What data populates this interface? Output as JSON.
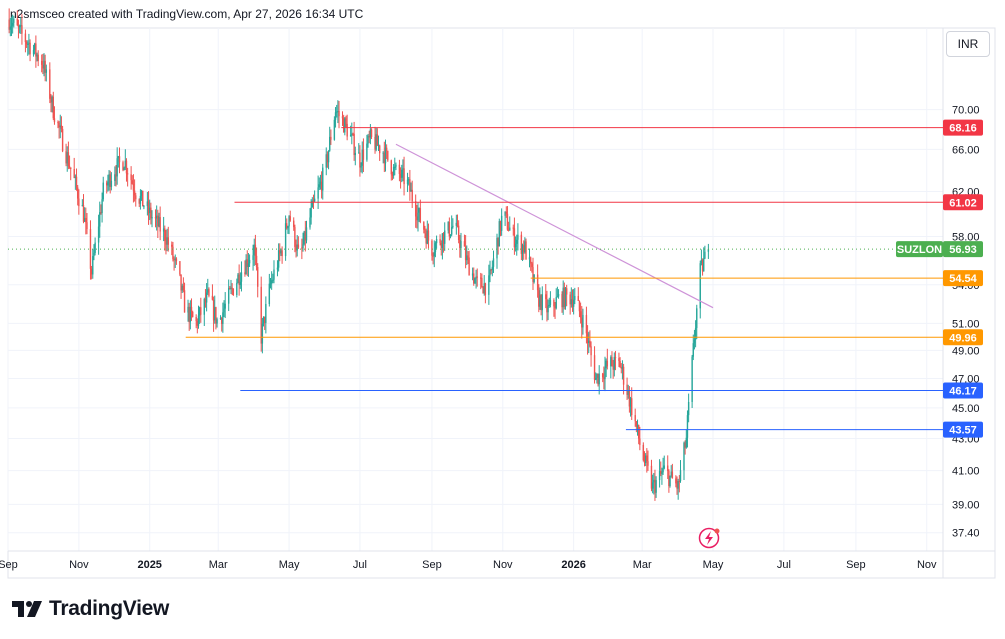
{
  "header": {
    "attribution": "n2smsceo created with TradingView.com, Apr 27, 2026 16:34 UTC"
  },
  "toolbar": {
    "currency_label": "INR"
  },
  "brand": {
    "name": "TradingView"
  },
  "colors": {
    "up": "#26a69a",
    "down": "#ef5350",
    "grid": "#f0f3fa",
    "red_level": "#f23645",
    "orange_level": "#ff9800",
    "blue_level": "#2962ff",
    "trendline": "#ce93d8",
    "last_price": "#4caf50",
    "alert": "#e91e63"
  },
  "icons": {
    "alert": "lightning-alert-icon",
    "logo": "tradingview-logo-icon"
  },
  "chart_data": {
    "type": "candlestick",
    "symbol": "SUZLON",
    "currency": "INR",
    "last_price": 56.93,
    "ylim": [
      36.4,
      79
    ],
    "y_scale": "log",
    "y_ticks": [
      "37.40",
      "39.00",
      "41.00",
      "43.00",
      "45.00",
      "47.00",
      "49.00",
      "51.00",
      "54.00",
      "58.00",
      "62.00",
      "66.00",
      "70.00"
    ],
    "x_range": [
      "2024-09-01",
      "2026-11-15"
    ],
    "x_ticks": [
      {
        "date": "2024-09-01",
        "label": "Sep",
        "bold": false
      },
      {
        "date": "2024-11-01",
        "label": "Nov",
        "bold": false
      },
      {
        "date": "2025-01-01",
        "label": "2025",
        "bold": true
      },
      {
        "date": "2025-03-01",
        "label": "Mar",
        "bold": false
      },
      {
        "date": "2025-05-01",
        "label": "May",
        "bold": false
      },
      {
        "date": "2025-07-01",
        "label": "Jul",
        "bold": false
      },
      {
        "date": "2025-09-01",
        "label": "Sep",
        "bold": false
      },
      {
        "date": "2025-11-01",
        "label": "Nov",
        "bold": false
      },
      {
        "date": "2026-01-01",
        "label": "2026",
        "bold": true
      },
      {
        "date": "2026-03-01",
        "label": "Mar",
        "bold": false
      },
      {
        "date": "2026-05-01",
        "label": "May",
        "bold": false
      },
      {
        "date": "2026-07-01",
        "label": "Jul",
        "bold": false
      },
      {
        "date": "2026-09-01",
        "label": "Sep",
        "bold": false
      },
      {
        "date": "2026-11-01",
        "label": "Nov",
        "bold": false
      }
    ],
    "price_path": [
      [
        "2024-09-02",
        80
      ],
      [
        "2024-09-20",
        77
      ],
      [
        "2024-10-01",
        75
      ],
      [
        "2024-10-10",
        70
      ],
      [
        "2024-10-20",
        66
      ],
      [
        "2024-10-28",
        63
      ],
      [
        "2024-11-05",
        60
      ],
      [
        "2024-11-12",
        55
      ],
      [
        "2024-11-22",
        62
      ],
      [
        "2024-12-01",
        64
      ],
      [
        "2024-12-10",
        65
      ],
      [
        "2024-12-20",
        62
      ],
      [
        "2025-01-01",
        60
      ],
      [
        "2025-01-15",
        58
      ],
      [
        "2025-01-25",
        55
      ],
      [
        "2025-02-01",
        52
      ],
      [
        "2025-02-10",
        51
      ],
      [
        "2025-02-20",
        53
      ],
      [
        "2025-03-01",
        51
      ],
      [
        "2025-03-10",
        53
      ],
      [
        "2025-03-20",
        55
      ],
      [
        "2025-04-01",
        57
      ],
      [
        "2025-04-07",
        50
      ],
      [
        "2025-04-15",
        54
      ],
      [
        "2025-04-25",
        57
      ],
      [
        "2025-05-01",
        60
      ],
      [
        "2025-05-10",
        56
      ],
      [
        "2025-05-20",
        60
      ],
      [
        "2025-06-01",
        64
      ],
      [
        "2025-06-10",
        70
      ],
      [
        "2025-06-20",
        68
      ],
      [
        "2025-07-01",
        65
      ],
      [
        "2025-07-10",
        67
      ],
      [
        "2025-07-20",
        66
      ],
      [
        "2025-07-30",
        64
      ],
      [
        "2025-08-10",
        63
      ],
      [
        "2025-08-20",
        60
      ],
      [
        "2025-09-01",
        57
      ],
      [
        "2025-09-10",
        58
      ],
      [
        "2025-09-20",
        59
      ],
      [
        "2025-10-01",
        56
      ],
      [
        "2025-10-10",
        54
      ],
      [
        "2025-10-20",
        54
      ],
      [
        "2025-11-01",
        60
      ],
      [
        "2025-11-10",
        58
      ],
      [
        "2025-11-20",
        57
      ],
      [
        "2025-12-01",
        53
      ],
      [
        "2025-12-10",
        52
      ],
      [
        "2025-12-20",
        53
      ],
      [
        "2026-01-01",
        53
      ],
      [
        "2026-01-10",
        51
      ],
      [
        "2026-01-20",
        47
      ],
      [
        "2026-02-01",
        48
      ],
      [
        "2026-02-10",
        48
      ],
      [
        "2026-02-20",
        45
      ],
      [
        "2026-03-01",
        42
      ],
      [
        "2026-03-10",
        40
      ],
      [
        "2026-03-20",
        41
      ],
      [
        "2026-04-01",
        40
      ],
      [
        "2026-04-08",
        43
      ],
      [
        "2026-04-15",
        50
      ],
      [
        "2026-04-20",
        55
      ],
      [
        "2026-04-27",
        56.93
      ]
    ],
    "levels": [
      {
        "price": 68.16,
        "label": "68.16",
        "color": "#f23645",
        "start": "2025-06-15"
      },
      {
        "price": 61.02,
        "label": "61.02",
        "color": "#f23645",
        "start": "2025-03-15"
      },
      {
        "price": 54.54,
        "label": "54.54",
        "color": "#ff9800",
        "start": "2025-11-25"
      },
      {
        "price": 49.96,
        "label": "49.96",
        "color": "#ff9800",
        "start": "2025-02-01"
      },
      {
        "price": 46.17,
        "label": "46.17",
        "color": "#2962ff",
        "start": "2025-03-20"
      },
      {
        "price": 43.57,
        "label": "43.57",
        "color": "#2962ff",
        "start": "2026-02-15"
      }
    ],
    "trendline": {
      "from": [
        "2025-08-01",
        66.5
      ],
      "to": [
        "2026-05-01",
        52.2
      ],
      "color": "#ce93d8"
    }
  }
}
